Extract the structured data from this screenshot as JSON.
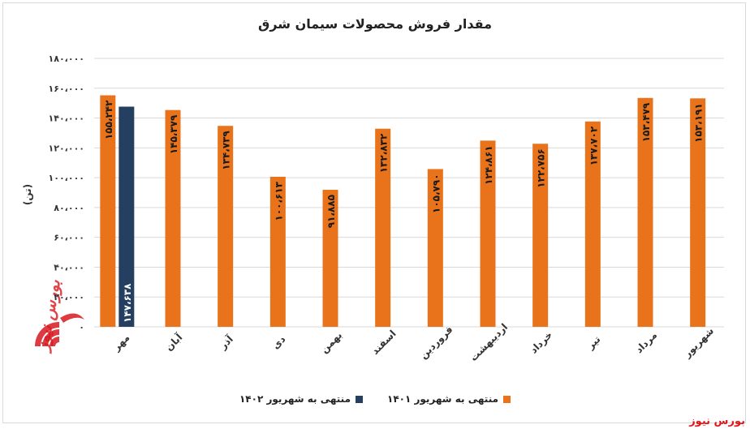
{
  "chart_data": {
    "type": "bar",
    "title": "مقدار فروش محصولات سیمان شرق",
    "ylabel": "(تن)",
    "ylim": [
      0,
      180000
    ],
    "yticks": [
      "۰",
      "۲۰،۰۰۰",
      "۴۰،۰۰۰",
      "۶۰،۰۰۰",
      "۸۰،۰۰۰",
      "۱۰۰،۰۰۰",
      "۱۲۰،۰۰۰",
      "۱۴۰،۰۰۰",
      "۱۶۰،۰۰۰",
      "۱۸۰،۰۰۰"
    ],
    "categories": [
      "مهر",
      "آبان",
      "آذر",
      "دی",
      "بهمن",
      "اسفند",
      "فروردین",
      "اردیبهشت",
      "خرداد",
      "تیر",
      "مرداد",
      "شهریور"
    ],
    "series": [
      {
        "name": "منتهی به شهریور ۱۴۰۱",
        "color": "#e8731a",
        "values": [
          155242,
          145379,
          134739,
          100613,
          91885,
          132832,
          105790,
          124861,
          122756,
          137702,
          153479,
          153191
        ],
        "labels": [
          "۱۵۵،۲۴۲",
          "۱۴۵،۳۷۹",
          "۱۳۴،۷۳۹",
          "۱۰۰،۶۱۳",
          "۹۱،۸۸۵",
          "۱۳۲،۸۳۲",
          "۱۰۵،۷۹۰",
          "۱۲۴،۸۶۱",
          "۱۲۲،۷۵۶",
          "۱۳۷،۷۰۲",
          "۱۵۳،۴۷۹",
          "۱۵۳،۱۹۱"
        ]
      },
      {
        "name": "منتهی به شهریور ۱۴۰۲",
        "color": "#243f60",
        "values": [
          147638,
          null,
          null,
          null,
          null,
          null,
          null,
          null,
          null,
          null,
          null,
          null
        ],
        "labels": [
          "۱۴۷،۶۳۸",
          null,
          null,
          null,
          null,
          null,
          null,
          null,
          null,
          null,
          null,
          null
        ]
      }
    ],
    "grid": true,
    "legend_position": "bottom"
  },
  "legend": {
    "item1": "منتهی به شهریور ۱۴۰۱",
    "item2": "منتهی به شهریور ۱۴۰۲"
  },
  "watermark": "بورس نیوز",
  "logo_text": "بورس نیوز"
}
